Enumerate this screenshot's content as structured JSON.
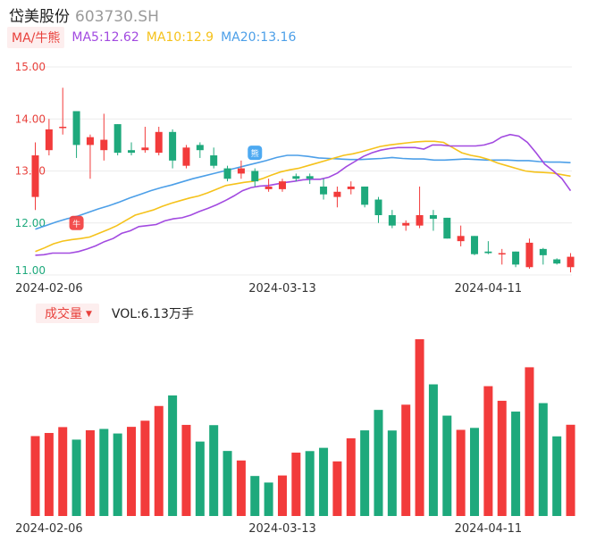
{
  "header": {
    "name": "岱美股份",
    "code": "603730.SH"
  },
  "ma_legend": {
    "toggle_label": "MA/牛熊",
    "ma5": "MA5:12.62",
    "ma10": "MA10:12.9",
    "ma20": "MA20:13.16"
  },
  "volume_legend": {
    "toggle_label": "成交量",
    "caret": "▼",
    "value": "VOL:6.13万手"
  },
  "markers": {
    "buy_glyph": "牛",
    "sell_glyph": "熊"
  },
  "colors": {
    "up": "#f23b3b",
    "down": "#1ea97c",
    "ma5": "#a24ae0",
    "ma10": "#f5c21b",
    "ma20": "#4c9fe8",
    "grid": "#ececec",
    "axis_label_up": "#e8413c",
    "axis_label_down": "#1ea97c"
  },
  "chart_data": [
    {
      "type": "candlestick",
      "ylim": [
        11.0,
        15.0
      ],
      "yticks": [
        "15.00",
        "14.00",
        "13.00",
        "12.00",
        "11.00"
      ],
      "x_ticks": [
        {
          "index": 1,
          "label": "2024-02-06"
        },
        {
          "index": 18,
          "label": "2024-03-13"
        },
        {
          "index": 33,
          "label": "2024-04-11"
        }
      ],
      "candles": [
        {
          "o": 12.5,
          "c": 13.3,
          "h": 13.55,
          "l": 12.25
        },
        {
          "o": 13.4,
          "c": 13.8,
          "h": 14.0,
          "l": 13.3
        },
        {
          "o": 13.85,
          "c": 13.85,
          "h": 14.6,
          "l": 13.7
        },
        {
          "o": 14.15,
          "c": 13.5,
          "h": 14.15,
          "l": 13.25
        },
        {
          "o": 13.5,
          "c": 13.65,
          "h": 13.7,
          "l": 12.85
        },
        {
          "o": 13.4,
          "c": 13.6,
          "h": 14.1,
          "l": 13.2
        },
        {
          "o": 13.9,
          "c": 13.35,
          "h": 13.9,
          "l": 13.3
        },
        {
          "o": 13.4,
          "c": 13.35,
          "h": 13.55,
          "l": 13.3
        },
        {
          "o": 13.4,
          "c": 13.45,
          "h": 13.85,
          "l": 13.35
        },
        {
          "o": 13.35,
          "c": 13.75,
          "h": 13.85,
          "l": 13.3
        },
        {
          "o": 13.75,
          "c": 13.2,
          "h": 13.8,
          "l": 13.05
        },
        {
          "o": 13.1,
          "c": 13.45,
          "h": 13.5,
          "l": 13.05
        },
        {
          "o": 13.5,
          "c": 13.4,
          "h": 13.55,
          "l": 13.25
        },
        {
          "o": 13.3,
          "c": 13.1,
          "h": 13.45,
          "l": 13.05
        },
        {
          "o": 13.05,
          "c": 12.85,
          "h": 13.1,
          "l": 12.8
        },
        {
          "o": 12.95,
          "c": 13.05,
          "h": 13.2,
          "l": 12.85
        },
        {
          "o": 13.0,
          "c": 12.8,
          "h": 13.05,
          "l": 12.7
        },
        {
          "o": 12.65,
          "c": 12.7,
          "h": 12.85,
          "l": 12.6
        },
        {
          "o": 12.65,
          "c": 12.8,
          "h": 12.85,
          "l": 12.6
        },
        {
          "o": 12.9,
          "c": 12.85,
          "h": 12.95,
          "l": 12.8
        },
        {
          "o": 12.9,
          "c": 12.85,
          "h": 12.95,
          "l": 12.75
        },
        {
          "o": 12.7,
          "c": 12.55,
          "h": 12.85,
          "l": 12.45
        },
        {
          "o": 12.5,
          "c": 12.6,
          "h": 12.7,
          "l": 12.3
        },
        {
          "o": 12.65,
          "c": 12.7,
          "h": 12.8,
          "l": 12.55
        },
        {
          "o": 12.7,
          "c": 12.35,
          "h": 12.7,
          "l": 12.3
        },
        {
          "o": 12.45,
          "c": 12.15,
          "h": 12.5,
          "l": 12.0
        },
        {
          "o": 12.15,
          "c": 11.95,
          "h": 12.25,
          "l": 11.9
        },
        {
          "o": 11.95,
          "c": 12.0,
          "h": 12.05,
          "l": 11.85
        },
        {
          "o": 11.95,
          "c": 12.15,
          "h": 12.7,
          "l": 11.9
        },
        {
          "o": 12.15,
          "c": 12.08,
          "h": 12.25,
          "l": 11.85
        },
        {
          "o": 12.1,
          "c": 11.7,
          "h": 12.1,
          "l": 11.7
        },
        {
          "o": 11.65,
          "c": 11.75,
          "h": 11.95,
          "l": 11.55
        },
        {
          "o": 11.75,
          "c": 11.4,
          "h": 11.75,
          "l": 11.38
        },
        {
          "o": 11.45,
          "c": 11.42,
          "h": 11.65,
          "l": 11.4
        },
        {
          "o": 11.4,
          "c": 11.42,
          "h": 11.5,
          "l": 11.2
        },
        {
          "o": 11.45,
          "c": 11.2,
          "h": 11.45,
          "l": 11.15
        },
        {
          "o": 11.15,
          "c": 11.62,
          "h": 11.7,
          "l": 11.12
        },
        {
          "o": 11.5,
          "c": 11.38,
          "h": 11.52,
          "l": 11.2
        },
        {
          "o": 11.3,
          "c": 11.22,
          "h": 11.32,
          "l": 11.2
        },
        {
          "o": 11.15,
          "c": 11.35,
          "h": 11.42,
          "l": 11.05
        }
      ],
      "ma5": [
        11.38,
        11.39,
        11.42,
        11.42,
        11.42,
        11.45,
        11.5,
        11.56,
        11.64,
        11.7,
        11.8,
        11.85,
        11.93,
        11.95,
        11.97,
        12.04,
        12.08,
        12.1,
        12.15,
        12.22,
        12.28,
        12.35,
        12.43,
        12.52,
        12.62,
        12.68,
        12.71,
        12.72,
        12.75,
        12.78,
        12.8,
        12.83,
        12.84,
        12.84,
        12.88,
        12.96,
        13.08,
        13.18,
        13.28,
        13.35,
        13.4,
        13.43,
        13.45,
        13.45,
        13.45,
        13.42,
        13.5,
        13.5,
        13.48,
        13.48,
        13.48,
        13.48,
        13.5,
        13.55,
        13.65,
        13.7,
        13.67,
        13.55,
        13.35,
        13.13,
        13.0,
        12.85,
        12.62
      ],
      "ma10": [
        11.45,
        11.52,
        11.6,
        11.65,
        11.68,
        11.7,
        11.73,
        11.8,
        11.87,
        11.95,
        12.05,
        12.15,
        12.2,
        12.25,
        12.32,
        12.38,
        12.43,
        12.48,
        12.52,
        12.58,
        12.65,
        12.72,
        12.75,
        12.78,
        12.8,
        12.85,
        12.92,
        12.98,
        13.02,
        13.05,
        13.1,
        13.15,
        13.2,
        13.25,
        13.3,
        13.33,
        13.37,
        13.42,
        13.47,
        13.5,
        13.52,
        13.54,
        13.56,
        13.57,
        13.57,
        13.55,
        13.45,
        13.35,
        13.3,
        13.27,
        13.22,
        13.15,
        13.1,
        13.05,
        13.0,
        12.98,
        12.97,
        12.96,
        12.93,
        12.9
      ],
      "ma20": [
        11.88,
        11.95,
        12.02,
        12.08,
        12.13,
        12.2,
        12.27,
        12.33,
        12.4,
        12.48,
        12.55,
        12.62,
        12.68,
        12.73,
        12.79,
        12.85,
        12.9,
        12.95,
        13.0,
        13.05,
        13.1,
        13.15,
        13.2,
        13.26,
        13.3,
        13.3,
        13.28,
        13.25,
        13.24,
        13.23,
        13.22,
        13.22,
        13.23,
        13.24,
        13.26,
        13.24,
        13.23,
        13.23,
        13.21,
        13.21,
        13.22,
        13.23,
        13.22,
        13.21,
        13.21,
        13.21,
        13.2,
        13.2,
        13.18,
        13.17,
        13.17,
        13.16
      ],
      "annotations": [
        {
          "index": 3,
          "price": 12.0,
          "type": "buy",
          "glyph": "牛"
        },
        {
          "index": 16,
          "price": 13.35,
          "type": "sell",
          "glyph": "熊"
        }
      ]
    },
    {
      "type": "bar",
      "title": "成交量",
      "values": [
        6.13,
        6.37,
        6.82,
        5.86,
        6.58,
        6.68,
        6.33,
        6.84,
        7.31,
        8.44,
        9.25,
        6.99,
        5.71,
        6.97,
        4.99,
        4.26,
        3.07,
        2.57,
        3.11,
        4.86,
        4.98,
        5.23,
        4.19,
        5.96,
        6.57,
        8.14,
        6.56,
        8.54,
        13.56,
        10.1,
        7.7,
        6.61,
        6.76,
        9.96,
        8.84,
        8.01,
        11.41,
        8.66,
        6.11,
        7.0
      ],
      "colors": [
        "up",
        "up",
        "up",
        "down",
        "up",
        "down",
        "down",
        "up",
        "up",
        "up",
        "down",
        "up",
        "down",
        "down",
        "down",
        "up",
        "down",
        "down",
        "up",
        "up",
        "down",
        "down",
        "up",
        "up",
        "down",
        "down",
        "down",
        "up",
        "up",
        "down",
        "down",
        "up",
        "down",
        "up",
        "up",
        "down",
        "up",
        "down",
        "down",
        "up"
      ]
    }
  ]
}
